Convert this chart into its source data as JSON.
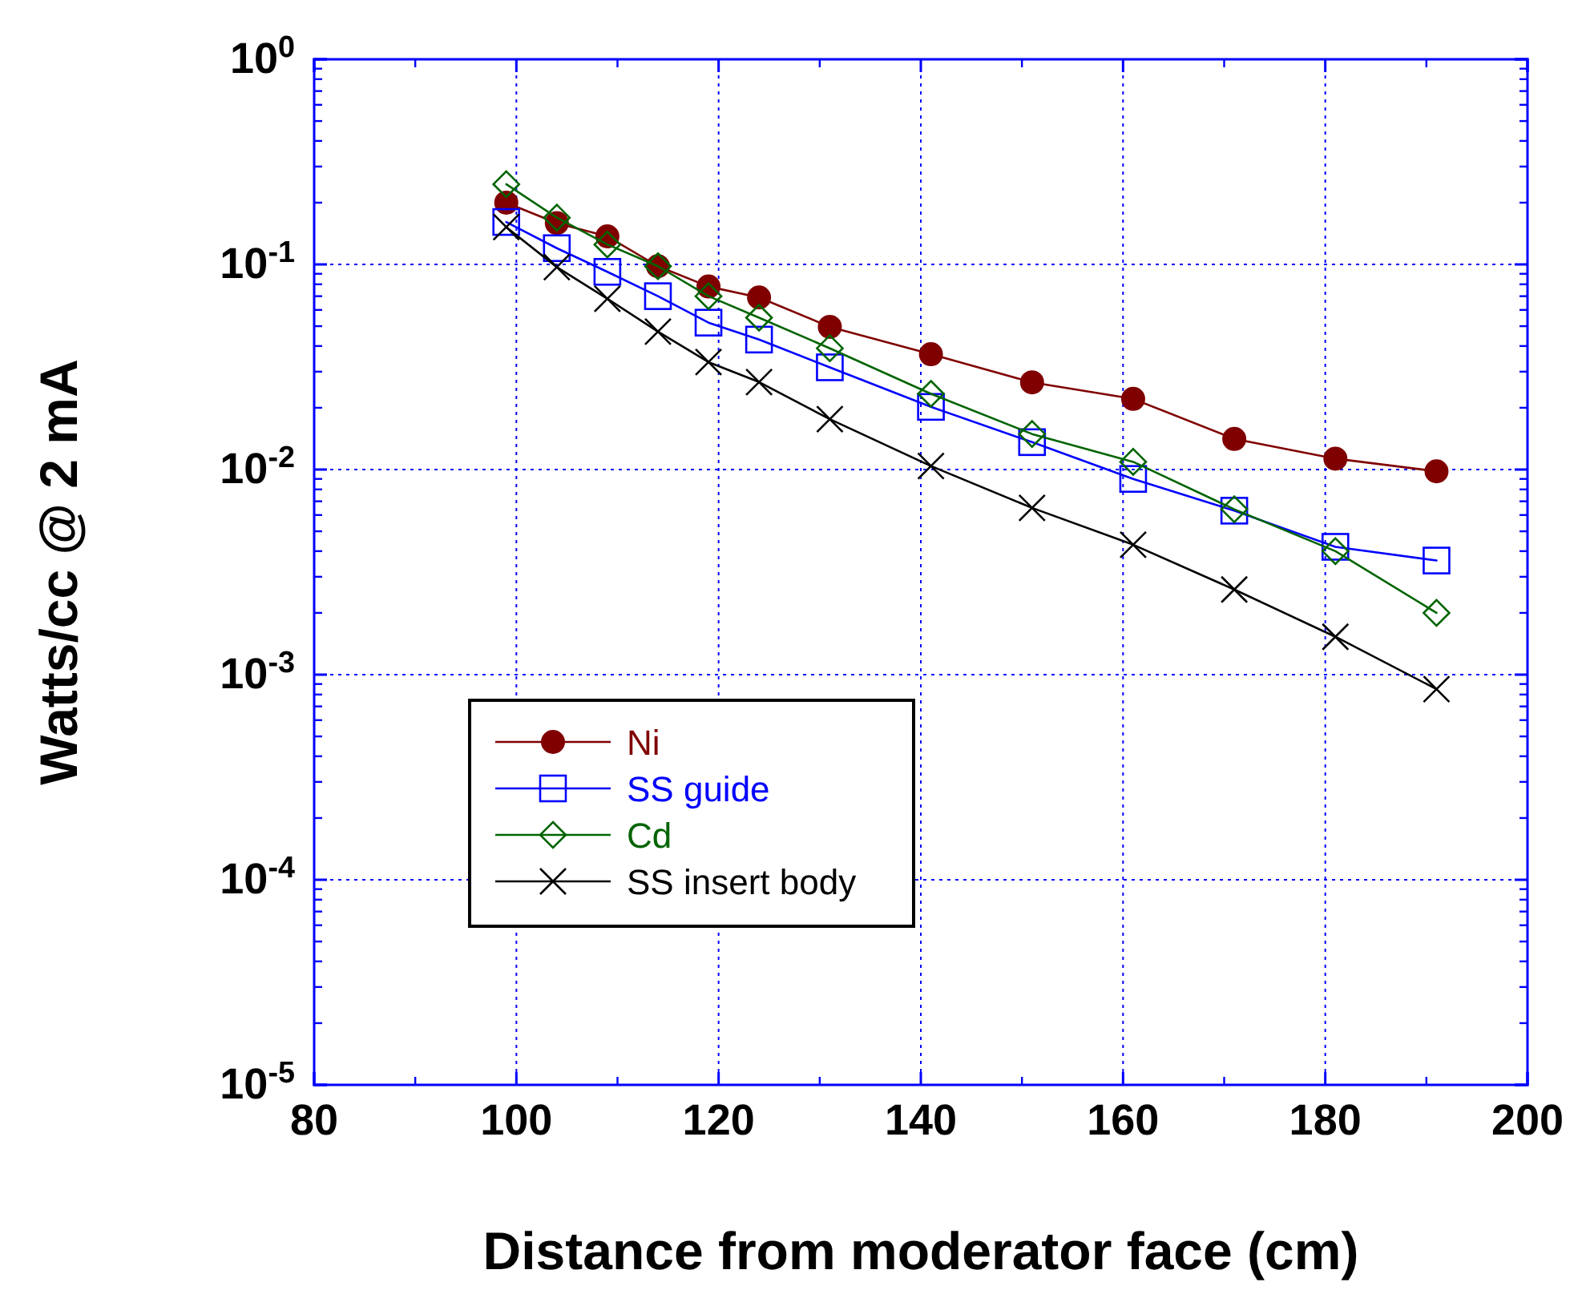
{
  "chart_data": {
    "type": "line",
    "xlabel": "Distance from moderator face (cm)",
    "ylabel": "Watts/cc @ 2 mA",
    "log": "y",
    "grid": true,
    "legend": "bottom left",
    "line_style": "solid",
    "xlim": [
      80,
      200
    ],
    "xticks": [
      80,
      100,
      120,
      140,
      160,
      180,
      200
    ],
    "ylim": [
      1e-05,
      1
    ],
    "yticks": [
      {
        "value": 1e-05,
        "label": "10$^{-5}$"
      },
      {
        "value": 0.0001,
        "label": "10$^{-4}$"
      },
      {
        "value": 0.001,
        "label": "10$^{-3}$"
      },
      {
        "value": 0.01,
        "label": "10$^{-2}$"
      },
      {
        "value": 0.1,
        "label": "10$^{-1}$"
      },
      {
        "value": 1,
        "label": "10$^{0}$"
      }
    ],
    "x": [
      99,
      104,
      109,
      114,
      119,
      124,
      131,
      141,
      151,
      161,
      171,
      181,
      191
    ],
    "series": [
      {
        "name": "Ni",
        "color": "#800000",
        "marker": "circle",
        "values": [
          0.2,
          0.159,
          0.137,
          0.098,
          0.078,
          0.069,
          0.0496,
          0.0365,
          0.0266,
          0.0221,
          0.0141,
          0.0113,
          0.0098
        ]
      },
      {
        "name": "SS guide",
        "color": "#0000ff",
        "marker": "square",
        "values": [
          0.161,
          0.12,
          0.092,
          0.07,
          0.052,
          0.043,
          0.0315,
          0.0202,
          0.0136,
          0.009,
          0.0063,
          0.0042,
          0.0036
        ]
      },
      {
        "name": "Cd",
        "color": "#006400",
        "marker": "diamond",
        "values": [
          0.246,
          0.169,
          0.125,
          0.098,
          0.07,
          0.055,
          0.039,
          0.0234,
          0.0149,
          0.0109,
          0.0064,
          0.004,
          0.002
        ]
      },
      {
        "name": "SS insert body",
        "color": "#000000",
        "marker": "cross",
        "values": [
          0.152,
          0.097,
          0.068,
          0.047,
          0.0334,
          0.0267,
          0.0176,
          0.0104,
          0.0065,
          0.0043,
          0.0026,
          0.00153,
          0.00085
        ]
      }
    ]
  }
}
